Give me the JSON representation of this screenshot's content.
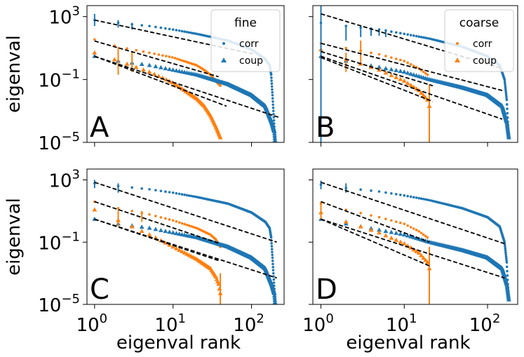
{
  "colors": {
    "corr": "#1f77b4",
    "coup": "#ff7f0e",
    "fit": "#000000"
  },
  "chart_data": [
    {
      "type": "scatter",
      "panel": "A",
      "legend": {
        "title": "fine",
        "entries": [
          "corr",
          "coup"
        ],
        "placement": "top-right"
      },
      "xscale": "log",
      "yscale": "log",
      "xlim": [
        0.8,
        260
      ],
      "ylim": [
        1e-05,
        5000
      ],
      "xlabel": "",
      "ylabel": "eigenval",
      "xticks": [
        1,
        10,
        100
      ],
      "yticks": [
        1000,
        0.1,
        1e-05
      ],
      "ytick_labels": [
        {
          "base": "10",
          "exp": "3"
        },
        {
          "base": "10",
          "exp": "−1"
        },
        {
          "base": "10",
          "exp": "−5"
        }
      ],
      "series": [
        {
          "name": "corr",
          "color": "corr",
          "marker": "dot",
          "n": 200,
          "x": [
            1,
            2,
            5,
            10,
            20,
            50,
            100,
            150,
            170,
            178,
            185,
            190,
            195,
            200
          ],
          "y": [
            600,
            400,
            250,
            150,
            80,
            30,
            8,
            2,
            0.8,
            0.2,
            0.01,
            0.001,
            0.0001,
            1e-05
          ]
        },
        {
          "name": "corr",
          "color": "coup",
          "marker": "dot",
          "n": 50,
          "x": [
            1,
            2,
            5,
            10,
            20,
            25,
            30,
            35,
            40
          ],
          "y": [
            35,
            12,
            5,
            2.5,
            0.8,
            0.4,
            0.2,
            0.08,
            0.04
          ]
        },
        {
          "name": "coup",
          "color": "corr",
          "marker": "tri",
          "n": 200,
          "x": [
            1,
            2,
            5,
            10,
            20,
            50,
            100,
            150,
            180,
            195,
            200
          ],
          "y": [
            3,
            1.5,
            0.8,
            0.4,
            0.2,
            0.05,
            0.01,
            0.002,
            0.0002,
            5e-05,
            1e-05
          ]
        },
        {
          "name": "coup",
          "color": "coup",
          "marker": "tri",
          "n": 50,
          "x": [
            1,
            2,
            5,
            10,
            20,
            25,
            30,
            35,
            40
          ],
          "y": [
            5,
            1.5,
            0.3,
            0.06,
            0.006,
            0.002,
            0.0005,
            0.0001,
            2e-05
          ]
        }
      ],
      "fits": [
        {
          "x": [
            1,
            110
          ],
          "y": [
            600,
            4
          ]
        },
        {
          "x": [
            1,
            38
          ],
          "y": [
            28,
            0.15
          ]
        },
        {
          "x": [
            1,
            48
          ],
          "y": [
            3,
            0.002
          ]
        },
        {
          "x": [
            1,
            220
          ],
          "y": [
            3,
            0.0004
          ]
        }
      ],
      "errorbars": [
        {
          "x": 1,
          "y": 600,
          "lo": 250,
          "hi": 1500,
          "color": "corr"
        },
        {
          "x": 2,
          "y": 350,
          "lo": 200,
          "hi": 600,
          "color": "corr"
        },
        {
          "x": 3,
          "y": 250,
          "lo": 150,
          "hi": 400,
          "color": "corr"
        },
        {
          "x": 2,
          "y": 5,
          "lo": 1,
          "hi": 12,
          "color": "coup"
        },
        {
          "x": 3,
          "y": 3,
          "lo": 0.3,
          "hi": 6,
          "color": "coup"
        },
        {
          "x": 2,
          "y": 0.8,
          "lo": 0.2,
          "hi": 2,
          "color": "coup"
        }
      ],
      "vlines": []
    },
    {
      "type": "scatter",
      "panel": "B",
      "legend": {
        "title": "coarse",
        "entries": [
          "corr",
          "coup"
        ],
        "placement": "top-right"
      },
      "xscale": "log",
      "yscale": "log",
      "xlim": [
        0.8,
        230
      ],
      "ylim": [
        1e-05,
        5000
      ],
      "xlabel": "",
      "ylabel": "",
      "xticks": [
        1,
        10,
        100
      ],
      "yticks": [],
      "ytick_labels": [],
      "series": [
        {
          "name": "corr",
          "color": "corr",
          "marker": "dot",
          "n": 180,
          "x": [
            1,
            2,
            5,
            10,
            20,
            50,
            100,
            140,
            160,
            170,
            175,
            180
          ],
          "y": [
            400,
            250,
            150,
            80,
            40,
            12,
            3,
            0.8,
            0.1,
            0.005,
            0.0002,
            2e-05
          ]
        },
        {
          "name": "corr",
          "color": "coup",
          "marker": "dot",
          "n": 20,
          "x": [
            1,
            2,
            5,
            10,
            15,
            19,
            20
          ],
          "y": [
            20,
            10,
            4,
            1.5,
            0.5,
            0.2,
            0.1
          ]
        },
        {
          "name": "coup",
          "color": "corr",
          "marker": "tri",
          "n": 180,
          "x": [
            1,
            2,
            5,
            10,
            20,
            50,
            100,
            150,
            170,
            180
          ],
          "y": [
            3,
            1.5,
            0.6,
            0.3,
            0.1,
            0.03,
            0.01,
            0.002,
            0.0002,
            2e-05
          ]
        },
        {
          "name": "coup",
          "color": "coup",
          "marker": "tri",
          "n": 20,
          "x": [
            1,
            2,
            5,
            10,
            15,
            19,
            20
          ],
          "y": [
            8,
            2,
            0.4,
            0.08,
            0.02,
            0.005,
            0.002
          ]
        }
      ],
      "fits": [
        {
          "x": [
            1,
            150
          ],
          "y": [
            1500,
            0.5
          ]
        },
        {
          "x": [
            1,
            150
          ],
          "y": [
            20,
            0.02
          ]
        },
        {
          "x": [
            1,
            22
          ],
          "y": [
            6,
            0.04
          ]
        },
        {
          "x": [
            1,
            22
          ],
          "y": [
            2.5,
            0.004
          ]
        },
        {
          "x": [
            1,
            150
          ],
          "y": [
            3,
            0.0003
          ]
        }
      ],
      "errorbars": [
        {
          "x": 2,
          "y": 100,
          "lo": 30,
          "hi": 300,
          "color": "corr"
        },
        {
          "x": 3,
          "y": 120,
          "lo": 50,
          "hi": 250,
          "color": "corr"
        },
        {
          "x": 4,
          "y": 110,
          "lo": 60,
          "hi": 200,
          "color": "corr"
        },
        {
          "x": 5,
          "y": 100,
          "lo": 60,
          "hi": 180,
          "color": "corr"
        },
        {
          "x": 6,
          "y": 90,
          "lo": 50,
          "hi": 160,
          "color": "corr"
        },
        {
          "x": 3,
          "y": 10,
          "lo": 1,
          "hi": 30,
          "color": "coup"
        },
        {
          "x": 2,
          "y": 2,
          "lo": 0.3,
          "hi": 5,
          "color": "coup"
        }
      ],
      "vlines": [
        {
          "x": 1,
          "from": 1e-05,
          "to": 5000,
          "color": "corr"
        },
        {
          "x": 20,
          "from": 1e-05,
          "to": 0.05,
          "color": "coup"
        }
      ]
    },
    {
      "type": "scatter",
      "panel": "C",
      "legend": null,
      "xscale": "log",
      "yscale": "log",
      "xlim": [
        0.8,
        260
      ],
      "ylim": [
        1e-05,
        5000
      ],
      "xlabel": "eigenval rank",
      "ylabel": "eigenval",
      "xticks": [
        1,
        10,
        100
      ],
      "yticks": [
        1000,
        0.1,
        1e-05
      ],
      "xtick_labels": [
        {
          "base": "10",
          "exp": "0"
        },
        {
          "base": "10",
          "exp": "1"
        },
        {
          "base": "10",
          "exp": "2"
        }
      ],
      "ytick_labels": [
        {
          "base": "10",
          "exp": "3"
        },
        {
          "base": "10",
          "exp": "−1"
        },
        {
          "base": "10",
          "exp": "−5"
        }
      ],
      "series": [
        {
          "name": "corr",
          "color": "corr",
          "marker": "dot",
          "n": 200,
          "x": [
            1,
            2,
            5,
            10,
            20,
            50,
            100,
            150,
            170,
            178,
            185,
            190,
            195,
            200
          ],
          "y": [
            600,
            400,
            250,
            150,
            80,
            30,
            8,
            2,
            0.8,
            0.2,
            0.01,
            0.001,
            0.0001,
            1e-05
          ]
        },
        {
          "name": "corr",
          "color": "coup",
          "marker": "dot",
          "n": 40,
          "x": [
            1,
            2,
            5,
            10,
            20,
            30,
            35,
            38,
            40
          ],
          "y": [
            40,
            15,
            6,
            2.5,
            0.8,
            0.3,
            0.15,
            0.08,
            0.05
          ]
        },
        {
          "name": "coup",
          "color": "corr",
          "marker": "tri",
          "n": 200,
          "x": [
            1,
            2,
            5,
            10,
            20,
            50,
            100,
            150,
            180,
            195,
            200
          ],
          "y": [
            3,
            1.5,
            0.8,
            0.4,
            0.2,
            0.05,
            0.01,
            0.002,
            0.0002,
            5e-05,
            1e-05
          ]
        },
        {
          "name": "coup",
          "color": "coup",
          "marker": "tri",
          "n": 40,
          "x": [
            1,
            2,
            5,
            10,
            20,
            30,
            35,
            38,
            40
          ],
          "y": [
            12,
            2.5,
            0.3,
            0.05,
            0.008,
            0.002,
            0.0006,
            0.0002,
            5e-05
          ]
        }
      ],
      "fits": [
        {
          "x": [
            1,
            210
          ],
          "y": [
            700,
            0.1
          ]
        },
        {
          "x": [
            1,
            40
          ],
          "y": [
            40,
            0.08
          ]
        },
        {
          "x": [
            1,
            40
          ],
          "y": [
            3,
            0.006
          ]
        },
        {
          "x": [
            1,
            210
          ],
          "y": [
            3,
            0.0005
          ]
        }
      ],
      "errorbars": [
        {
          "x": 1,
          "y": 600,
          "lo": 300,
          "hi": 1000,
          "color": "corr"
        },
        {
          "x": 2,
          "y": 350,
          "lo": 150,
          "hi": 600,
          "color": "corr"
        },
        {
          "x": 2,
          "y": 5,
          "lo": 1,
          "hi": 12,
          "color": "coup"
        },
        {
          "x": 4,
          "y": 5,
          "lo": 2,
          "hi": 10,
          "color": "coup"
        }
      ],
      "vlines": [
        {
          "x": 40,
          "from": 1e-05,
          "to": 0.001,
          "color": "coup"
        }
      ]
    },
    {
      "type": "scatter",
      "panel": "D",
      "legend": null,
      "xscale": "log",
      "yscale": "log",
      "xlim": [
        0.8,
        230
      ],
      "ylim": [
        1e-05,
        5000
      ],
      "xlabel": "eigenval rank",
      "ylabel": "",
      "xticks": [
        1,
        10,
        100
      ],
      "yticks": [],
      "xtick_labels": [
        {
          "base": "10",
          "exp": "0"
        },
        {
          "base": "10",
          "exp": "1"
        },
        {
          "base": "10",
          "exp": "2"
        }
      ],
      "ytick_labels": [],
      "series": [
        {
          "name": "corr",
          "color": "corr",
          "marker": "dot",
          "n": 180,
          "x": [
            1,
            2,
            5,
            10,
            20,
            50,
            100,
            140,
            160,
            170,
            175,
            180
          ],
          "y": [
            500,
            300,
            180,
            100,
            50,
            15,
            4,
            1,
            0.1,
            0.005,
            0.0002,
            2e-05
          ]
        },
        {
          "name": "corr",
          "color": "coup",
          "marker": "dot",
          "n": 20,
          "x": [
            1,
            2,
            5,
            10,
            15,
            19,
            20
          ],
          "y": [
            30,
            12,
            4,
            1.5,
            0.5,
            0.2,
            0.1
          ]
        },
        {
          "name": "coup",
          "color": "corr",
          "marker": "tri",
          "n": 180,
          "x": [
            1,
            2,
            5,
            10,
            20,
            50,
            100,
            150,
            170,
            180
          ],
          "y": [
            3,
            1.5,
            0.6,
            0.3,
            0.1,
            0.03,
            0.01,
            0.002,
            0.0002,
            2e-05
          ]
        },
        {
          "name": "coup",
          "color": "coup",
          "marker": "tri",
          "n": 20,
          "x": [
            1,
            2,
            5,
            10,
            15,
            19,
            20
          ],
          "y": [
            8,
            2,
            0.4,
            0.08,
            0.02,
            0.005,
            0.002
          ]
        }
      ],
      "fits": [
        {
          "x": [
            1,
            160
          ],
          "y": [
            700,
            0.08
          ]
        },
        {
          "x": [
            1,
            20
          ],
          "y": [
            40,
            0.1
          ]
        },
        {
          "x": [
            1,
            20
          ],
          "y": [
            3,
            0.003
          ]
        },
        {
          "x": [
            1,
            160
          ],
          "y": [
            3,
            0.0005
          ]
        }
      ],
      "errorbars": [
        {
          "x": 1,
          "y": 500,
          "lo": 250,
          "hi": 900,
          "color": "corr"
        },
        {
          "x": 2,
          "y": 300,
          "lo": 150,
          "hi": 600,
          "color": "corr"
        },
        {
          "x": 1,
          "y": 20,
          "lo": 3,
          "hi": 40,
          "color": "coup"
        }
      ],
      "vlines": [
        {
          "x": 20,
          "from": 1e-05,
          "to": 0.05,
          "color": "coup"
        }
      ]
    }
  ]
}
